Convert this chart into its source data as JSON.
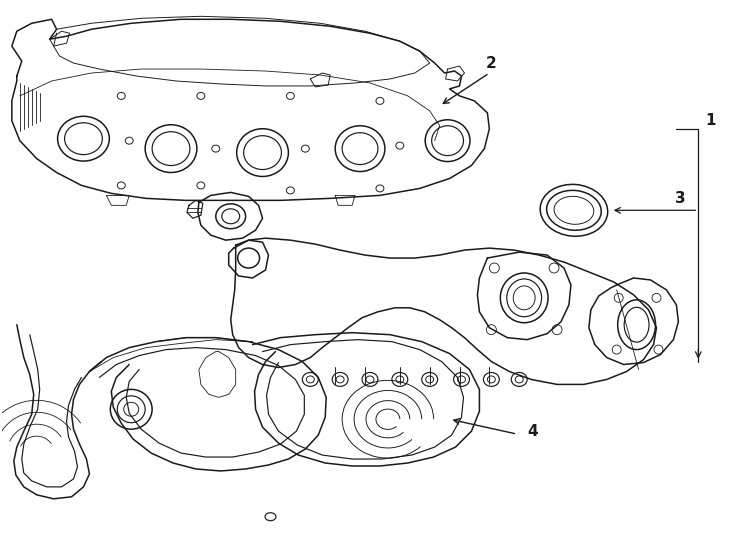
{
  "background_color": "#ffffff",
  "line_color": "#1a1a1a",
  "figsize": [
    7.34,
    5.4
  ],
  "dpi": 100,
  "lw_main": 1.1,
  "lw_detail": 0.85,
  "label_fontsize": 11
}
